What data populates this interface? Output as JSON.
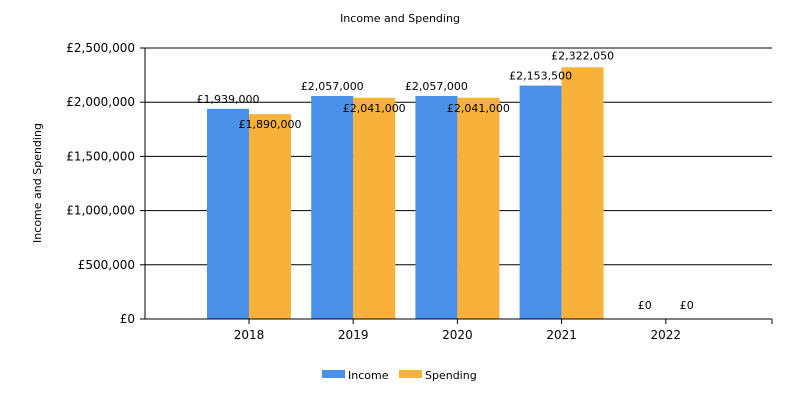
{
  "chart_data": {
    "type": "bar",
    "title": "Income and Spending",
    "ylabel": "Income and Spending",
    "xlabel": "",
    "categories": [
      "2018",
      "2019",
      "2020",
      "2021",
      "2022"
    ],
    "series": [
      {
        "name": "Income",
        "color": "#4a90e8",
        "values": [
          1939000,
          2057000,
          2057000,
          2153500,
          0
        ],
        "labels": [
          "£1,939,000",
          "£2,057,000",
          "£2,057,000",
          "£2,153,500",
          "£0"
        ]
      },
      {
        "name": "Spending",
        "color": "#f8b23c",
        "values": [
          1890000,
          2041000,
          2041000,
          2322050,
          0
        ],
        "labels": [
          "£1,890,000",
          "£2,041,000",
          "£2,041,000",
          "£2,322,050",
          "£0"
        ]
      }
    ],
    "ylim": [
      0,
      2500000
    ],
    "y_ticks": [
      0,
      500000,
      1000000,
      1500000,
      2000000,
      2500000
    ],
    "y_tick_labels": [
      "£0",
      "£500,000",
      "£1,000,000",
      "£1,500,000",
      "£2,000,000",
      "£2,500,000"
    ],
    "grid": true,
    "legend_position": "bottom-center"
  }
}
